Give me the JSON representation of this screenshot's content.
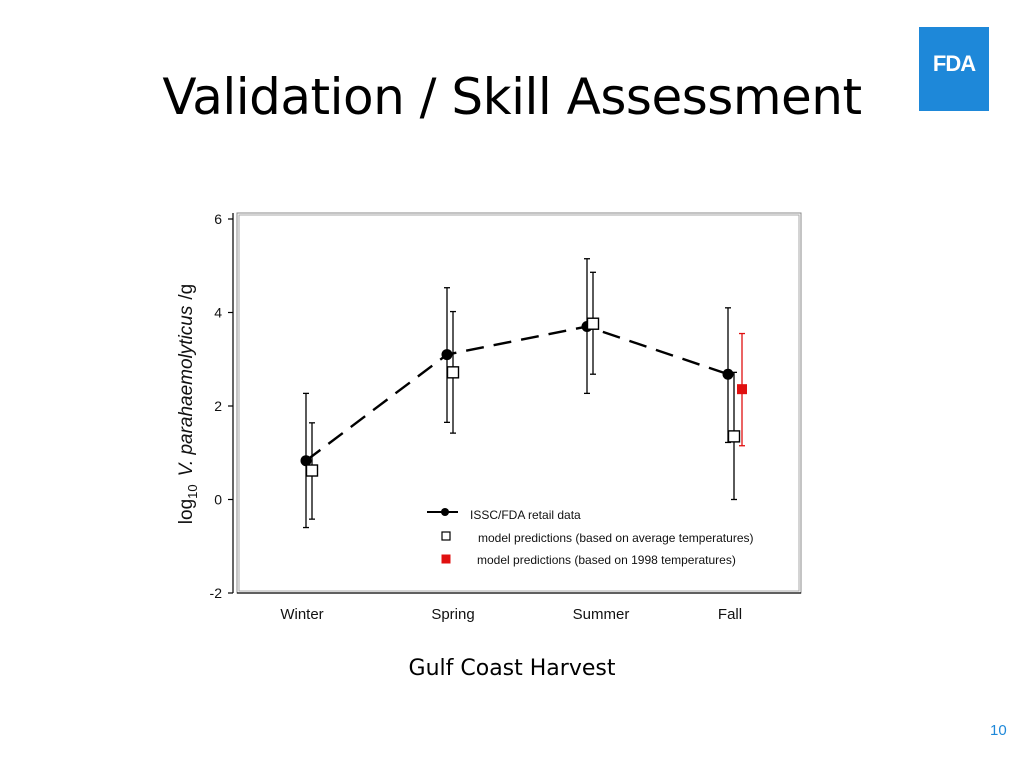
{
  "slide": {
    "title": "Validation / Skill Assessment",
    "caption": "Gulf Coast Harvest",
    "page_number": "10",
    "logo_text": "FDA"
  },
  "colors": {
    "logo": "#1e88d9",
    "observed": "#000000",
    "model_avg": "#000000",
    "model_1998": "#e01010"
  },
  "chart_data": {
    "type": "scatter",
    "categories": [
      "Winter",
      "Spring",
      "Summer",
      "Fall"
    ],
    "ylabel": {
      "prefix": "log",
      "subscript": "10",
      "species": "V. parahaemolyticus",
      "unit": "/g"
    },
    "ylim": [
      -2,
      6
    ],
    "yticks": [
      "6",
      "4",
      "2",
      "0",
      "-2"
    ],
    "ytick_values": [
      6,
      4,
      2,
      0,
      -2
    ],
    "grid": false,
    "legend_position": "bottom-center",
    "series": [
      {
        "name": "ISSC/FDA retail data",
        "marker": "filled-circle",
        "line": "dashed",
        "values": [
          0.83,
          3.1,
          3.7,
          2.68
        ],
        "error_low": [
          -0.6,
          1.65,
          2.27,
          1.22
        ],
        "error_high": [
          2.27,
          4.53,
          5.15,
          4.1
        ]
      },
      {
        "name": "model predictions (based on average temperatures)",
        "marker": "open-square",
        "line": "none",
        "values": [
          0.62,
          2.72,
          3.76,
          1.35
        ],
        "error_low": [
          -0.42,
          1.42,
          2.68,
          0.0
        ],
        "error_high": [
          1.64,
          4.02,
          4.86,
          2.72
        ]
      },
      {
        "name": "model predictions (based on 1998 temperatures)",
        "marker": "filled-square",
        "line": "none",
        "points": [
          {
            "category": "Fall",
            "value": 2.36,
            "error_low": 1.15,
            "error_high": 3.55
          }
        ]
      }
    ]
  }
}
